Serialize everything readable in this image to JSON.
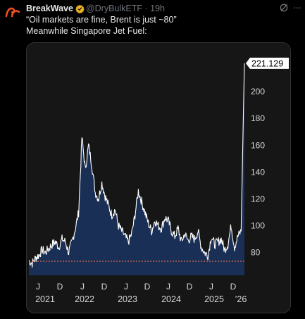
{
  "post": {
    "author_name": "BreakWave",
    "author_handle": "@DryBulkETF",
    "separator": "·",
    "time": "19h",
    "text_line1": "“Oil markets are fine, Brent is just ~80”",
    "text_line2": "Meanwhile Singapore Jet Fuel:"
  },
  "icons": {
    "avatar": "breakwave-wave-logo",
    "verified": "verified-badge-icon",
    "grok": "grok-icon",
    "more": "more-icon"
  },
  "colors": {
    "verified_badge": "#e8b122",
    "avatar_logo": "#f04e23",
    "area_fill": "#1a2f55",
    "line": "#ffffff",
    "reference_line": "#e06a4e"
  },
  "chart_data": {
    "type": "area",
    "title": "",
    "xlabel": "",
    "ylabel": "",
    "last_value_label": "221.129",
    "y_ticks": [
      80,
      100,
      120,
      140,
      160,
      180,
      200
    ],
    "ylim": [
      63,
      230
    ],
    "reference_line": 73.5,
    "x_month_ticks": [
      "J",
      "D",
      "J",
      "D",
      "J",
      "D",
      "J",
      "D",
      "J",
      "D"
    ],
    "x_year_ticks": [
      "2021",
      "2022",
      "2023",
      "2024",
      "2025",
      "’26"
    ],
    "x": [
      "2020-11",
      "2020-12",
      "2021-01",
      "2021-02",
      "2021-03",
      "2021-04",
      "2021-05",
      "2021-06",
      "2021-07",
      "2021-08",
      "2021-09",
      "2021-10",
      "2021-11",
      "2021-12",
      "2022-01",
      "2022-02",
      "2022-03",
      "2022-04",
      "2022-05",
      "2022-06",
      "2022-07",
      "2022-08",
      "2022-09",
      "2022-10",
      "2022-11",
      "2022-12",
      "2023-01",
      "2023-02",
      "2023-03",
      "2023-04",
      "2023-05",
      "2023-06",
      "2023-07",
      "2023-08",
      "2023-09",
      "2023-10",
      "2023-11",
      "2023-12",
      "2024-01",
      "2024-02",
      "2024-03",
      "2024-04",
      "2024-05",
      "2024-06",
      "2024-07",
      "2024-08",
      "2024-09",
      "2024-10",
      "2024-11",
      "2024-12",
      "2025-01",
      "2025-02",
      "2025-03",
      "2025-04",
      "2025-05",
      "2025-06",
      "2025-07",
      "2025-08",
      "2025-09",
      "2025-10",
      "2025-11",
      "2025-12",
      "2026-01",
      "2026-02",
      "2026-03",
      "2026-04"
    ],
    "values": [
      74,
      72,
      76,
      78,
      82,
      80,
      83,
      86,
      88,
      84,
      90,
      88,
      80,
      88,
      98,
      110,
      166,
      142,
      160,
      145,
      125,
      120,
      132,
      122,
      115,
      108,
      112,
      100,
      96,
      92,
      88,
      94,
      108,
      126,
      118,
      110,
      102,
      96,
      104,
      100,
      98,
      106,
      104,
      96,
      92,
      98,
      88,
      94,
      89,
      92,
      90,
      96,
      84,
      80,
      78,
      92,
      86,
      88,
      90,
      82,
      86,
      100,
      84,
      92,
      96,
      221.129
    ]
  }
}
